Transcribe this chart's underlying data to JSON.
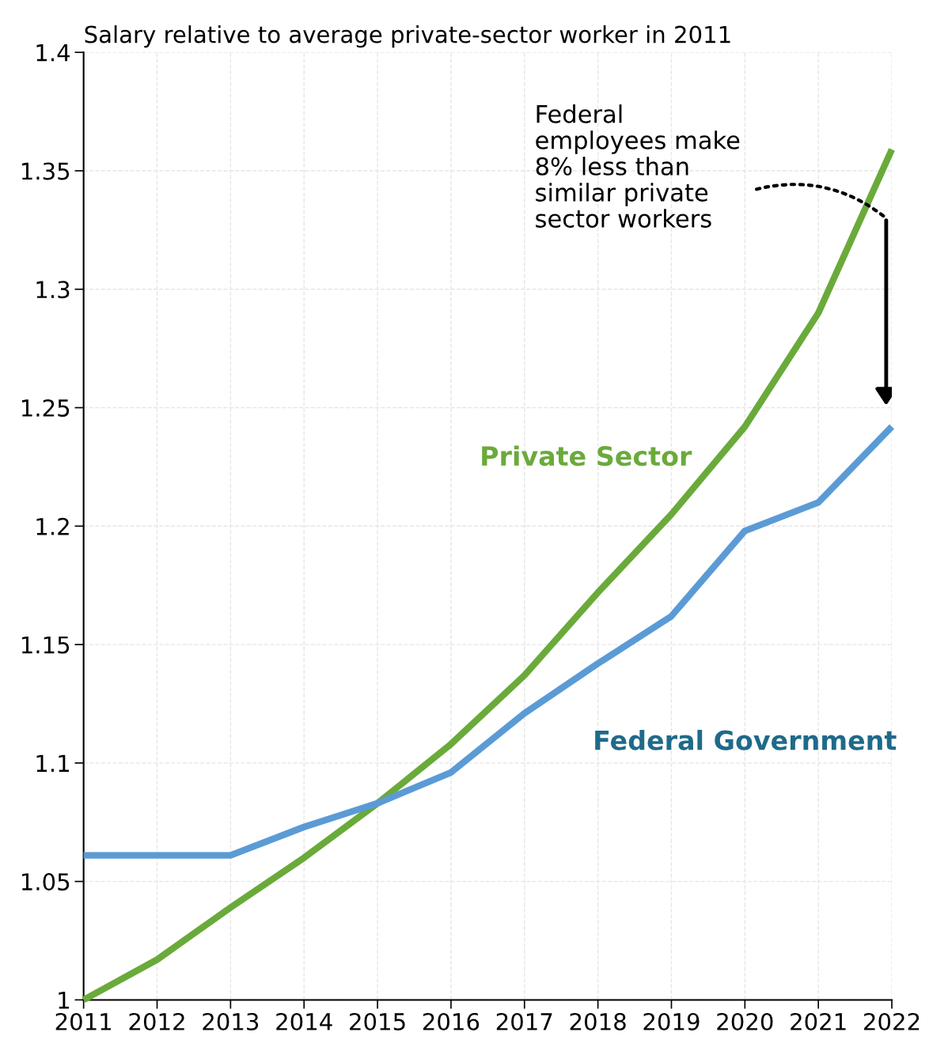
{
  "chart_data": {
    "type": "line",
    "title": "Salary relative to average private-sector worker in 2011",
    "x": [
      2011,
      2012,
      2013,
      2014,
      2015,
      2016,
      2017,
      2018,
      2019,
      2020,
      2021,
      2022
    ],
    "series": [
      {
        "name": "Private Sector",
        "color": "#6aaa3a",
        "values": [
          1,
          1.017,
          1.039,
          1.06,
          1.083,
          1.108,
          1.137,
          1.172,
          1.205,
          1.242,
          1.29,
          1.359
        ]
      },
      {
        "name": "Federal Government",
        "color": "#5b9bd5",
        "values": [
          1.061,
          1.061,
          1.061,
          1.073,
          1.083,
          1.096,
          1.121,
          1.142,
          1.162,
          1.198,
          1.21,
          1.242
        ]
      }
    ],
    "xlim": [
      2011,
      2022
    ],
    "xticks": [
      2011,
      2012,
      2013,
      2014,
      2015,
      2016,
      2017,
      2018,
      2019,
      2020,
      2021,
      2022
    ],
    "ylim": [
      1,
      1.4
    ],
    "yticks": [
      1,
      1.05,
      1.1,
      1.15,
      1.2,
      1.25,
      1.3,
      1.35,
      1.4
    ],
    "grid": true,
    "legend": false,
    "marker": "none",
    "line_style": "solid",
    "annotations": [
      "Federal\nemployees make\n8% less than\nsimilar private\nsector workers"
    ]
  }
}
